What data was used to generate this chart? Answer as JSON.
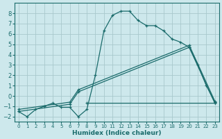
{
  "xlabel": "Humidex (Indice chaleur)",
  "bg_color": "#cde8ec",
  "grid_color": "#a8c8cc",
  "line_color": "#1a6b6b",
  "xlim": [
    -0.5,
    23.5
  ],
  "ylim": [
    -2.5,
    9.0
  ],
  "yticks": [
    -2,
    -1,
    0,
    1,
    2,
    3,
    4,
    5,
    6,
    7,
    8
  ],
  "xticks": [
    0,
    1,
    2,
    3,
    4,
    5,
    6,
    7,
    8,
    9,
    10,
    11,
    12,
    13,
    14,
    15,
    16,
    17,
    18,
    19,
    20,
    21,
    22,
    23
  ],
  "curve1_x": [
    0,
    1,
    2,
    3,
    4,
    5,
    6,
    7,
    8,
    9,
    10,
    11,
    12,
    13,
    14,
    15,
    16,
    17,
    18,
    19,
    20,
    21,
    22,
    23
  ],
  "curve1_y": [
    -1.5,
    -2.0,
    -1.3,
    -1.0,
    -0.7,
    -1.1,
    -1.1,
    -2.0,
    -1.3,
    2.0,
    6.3,
    7.8,
    8.2,
    8.2,
    7.3,
    6.8,
    6.8,
    6.3,
    5.5,
    5.2,
    4.7,
    3.0,
    1.0,
    -0.6
  ],
  "curve2_x": [
    0,
    6,
    7,
    20,
    23
  ],
  "curve2_y": [
    -1.5,
    -0.8,
    0.4,
    4.7,
    -0.7
  ],
  "curve3_x": [
    0,
    6,
    7,
    20,
    23
  ],
  "curve3_y": [
    -1.3,
    -0.6,
    0.6,
    4.9,
    -0.5
  ],
  "curve4_x": [
    8,
    23
  ],
  "curve4_y": [
    -0.7,
    -0.7
  ]
}
